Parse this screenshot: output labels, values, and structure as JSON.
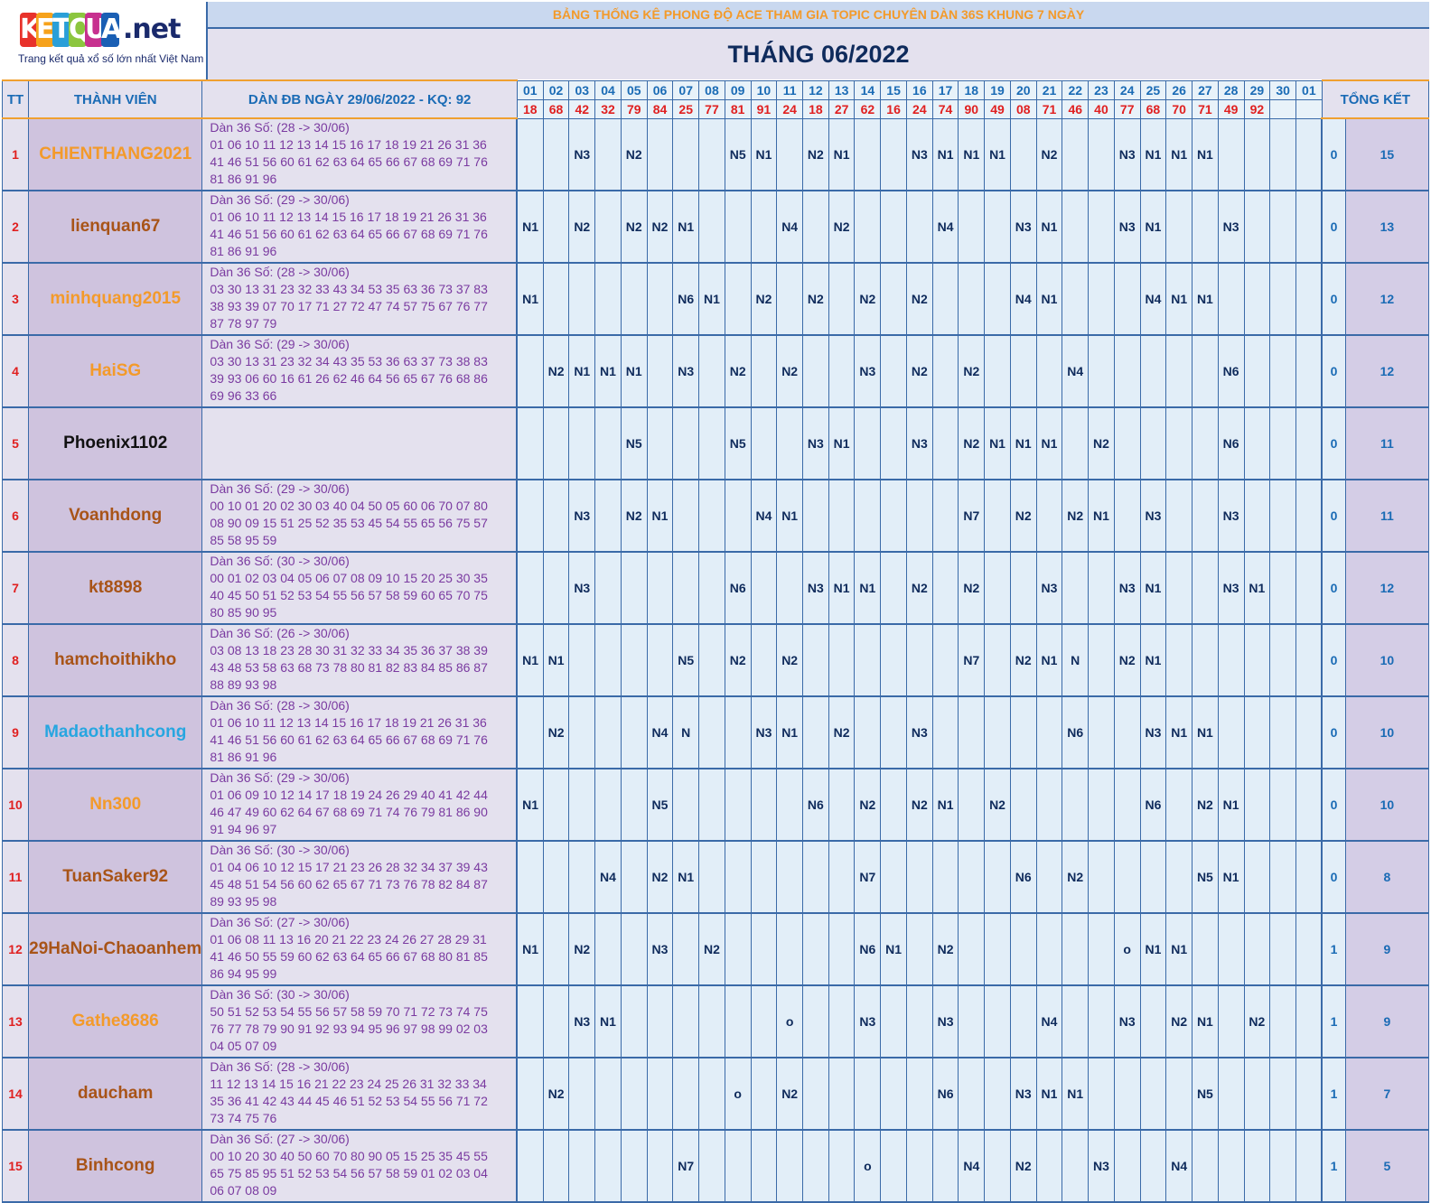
{
  "logo": {
    "brand": "KETQUA",
    "suffix": ".net",
    "tagline": "Trang kết quả xổ số lớn nhất Việt Nam",
    "letter_colors": [
      "#e8322b",
      "#f6a21b",
      "#2a9fd8",
      "#8cc63f",
      "#c7318f",
      "#1a5fb4"
    ]
  },
  "header": {
    "subtitle": "BẢNG THỐNG KÊ PHONG ĐỘ ACE THAM GIA TOPIC CHUYÊN DÀN 36S KHUNG 7 NGÀY",
    "title": "THÁNG 06/2022"
  },
  "columns": {
    "tt": "TT",
    "member": "THÀNH VIÊN",
    "dan": "DÀN ĐB NGÀY 29/06/2022 - KQ: 92",
    "total": "TỔNG KẾT"
  },
  "days": [
    "01",
    "02",
    "03",
    "04",
    "05",
    "06",
    "07",
    "08",
    "09",
    "10",
    "11",
    "12",
    "13",
    "14",
    "15",
    "16",
    "17",
    "18",
    "19",
    "20",
    "21",
    "22",
    "23",
    "24",
    "25",
    "26",
    "27",
    "28",
    "29",
    "30",
    "01"
  ],
  "results": [
    "18",
    "68",
    "42",
    "32",
    "79",
    "84",
    "25",
    "77",
    "81",
    "91",
    "24",
    "18",
    "27",
    "62",
    "16",
    "24",
    "74",
    "90",
    "49",
    "08",
    "71",
    "46",
    "40",
    "77",
    "68",
    "70",
    "71",
    "49",
    "92",
    "",
    ""
  ],
  "name_colors": {
    "orange": "#f39a2a",
    "brown": "#a85418",
    "black": "#111111",
    "cyan": "#27a6e0"
  },
  "rows": [
    {
      "tt": "1",
      "name": "CHIENTHANG2021",
      "color": "orange",
      "dan": [
        "Dàn 36 Số: (28 -> 30/06)",
        "01 06 10 11 12 13 14 15 16 17 18 19 21 26 31 36",
        "41 46 51 56 60 61 62 63 64 65 66 67 68 69 71 76",
        "81 86 91 96"
      ],
      "cells": [
        "",
        "",
        "N3",
        "",
        "N2",
        "",
        "",
        "",
        "N5",
        "N1",
        "",
        "N2",
        "N1",
        "",
        "",
        "N3",
        "N1",
        "N1",
        "N1",
        "",
        "N2",
        "",
        "",
        "N3",
        "N1",
        "N1",
        "N1",
        "",
        "",
        "",
        ""
      ],
      "t1": "0",
      "t2": "15"
    },
    {
      "tt": "2",
      "name": "lienquan67",
      "color": "brown",
      "dan": [
        "Dàn 36 Số: (29 -> 30/06)",
        "01 06 10 11 12 13 14 15 16 17 18 19 21 26 31 36",
        "41 46 51 56 60 61 62 63 64 65 66 67 68 69 71 76",
        "81 86 91 96"
      ],
      "cells": [
        "N1",
        "",
        "N2",
        "",
        "N2",
        "N2",
        "N1",
        "",
        "",
        "",
        "N4",
        "",
        "N2",
        "",
        "",
        "",
        "N4",
        "",
        "",
        "N3",
        "N1",
        "",
        "",
        "N3",
        "N1",
        "",
        "",
        "N3",
        "",
        "",
        ""
      ],
      "t1": "0",
      "t2": "13"
    },
    {
      "tt": "3",
      "name": "minhquang2015",
      "color": "orange",
      "dan": [
        "Dàn 36 Số: (28 -> 30/06)",
        "03 30 13 31 23 32 33 43 34 53 35 63 36 73 37 83",
        "38 93 39 07 70 17 71 27 72 47 74 57 75 67 76 77",
        "87 78 97 79"
      ],
      "cells": [
        "N1",
        "",
        "",
        "",
        "",
        "",
        "N6",
        "N1",
        "",
        "N2",
        "",
        "N2",
        "",
        "N2",
        "",
        "N2",
        "",
        "",
        "",
        "N4",
        "N1",
        "",
        "",
        "",
        "N4",
        "N1",
        "N1",
        "",
        "",
        "",
        ""
      ],
      "t1": "0",
      "t2": "12"
    },
    {
      "tt": "4",
      "name": "HaiSG",
      "color": "orange",
      "dan": [
        "Dàn 36 Số: (29 -> 30/06)",
        "03 30 13 31 23 32 34 43 35 53 36 63 37 73 38 83",
        "39 93 06 60 16 61 26 62 46 64 56 65 67 76 68 86",
        "69 96 33 66"
      ],
      "cells": [
        "",
        "N2",
        "N1",
        "N1",
        "N1",
        "",
        "N3",
        "",
        "N2",
        "",
        "N2",
        "",
        "",
        "N3",
        "",
        "N2",
        "",
        "N2",
        "",
        "",
        "",
        "N4",
        "",
        "",
        "",
        "",
        "",
        "N6",
        "",
        "",
        ""
      ],
      "t1": "0",
      "t2": "12"
    },
    {
      "tt": "5",
      "name": "Phoenix1102",
      "color": "black",
      "dan": [],
      "cells": [
        "",
        "",
        "",
        "",
        "N5",
        "",
        "",
        "",
        "N5",
        "",
        "",
        "N3",
        "N1",
        "",
        "",
        "N3",
        "",
        "N2",
        "N1",
        "N1",
        "N1",
        "",
        "N2",
        "",
        "",
        "",
        "",
        "N6",
        "",
        "",
        ""
      ],
      "t1": "0",
      "t2": "11"
    },
    {
      "tt": "6",
      "name": "Voanhdong",
      "color": "brown",
      "dan": [
        "Dàn 36 Số: (29 -> 30/06)",
        "00 10 01 20 02 30 03 40 04 50 05 60 06 70 07 80",
        "08 90 09 15 51 25 52 35 53 45 54 55 65 56 75 57",
        "85 58 95 59"
      ],
      "cells": [
        "",
        "",
        "N3",
        "",
        "N2",
        "N1",
        "",
        "",
        "",
        "N4",
        "N1",
        "",
        "",
        "",
        "",
        "",
        "",
        "N7",
        "",
        "N2",
        "",
        "N2",
        "N1",
        "",
        "N3",
        "",
        "",
        "N3",
        "",
        "",
        ""
      ],
      "t1": "0",
      "t2": "11"
    },
    {
      "tt": "7",
      "name": "kt8898",
      "color": "brown",
      "dan": [
        "Dàn 36 Số: (30 -> 30/06)",
        "00 01 02 03 04 05 06 07 08 09 10 15 20 25 30 35",
        "40 45 50 51 52 53 54 55 56 57 58 59 60 65 70 75",
        "80 85 90 95"
      ],
      "cells": [
        "",
        "",
        "N3",
        "",
        "",
        "",
        "",
        "",
        "N6",
        "",
        "",
        "N3",
        "N1",
        "N1",
        "",
        "N2",
        "",
        "N2",
        "",
        "",
        "N3",
        "",
        "",
        "N3",
        "N1",
        "",
        "",
        "N3",
        "N1",
        "",
        ""
      ],
      "t1": "0",
      "t2": "12"
    },
    {
      "tt": "8",
      "name": "hamchoithikho",
      "color": "brown",
      "dan": [
        "Dàn 36 Số: (26 -> 30/06)",
        "03 08 13 18 23 28 30 31 32 33 34 35 36 37 38 39",
        "43 48 53 58 63 68 73 78 80 81 82 83 84 85 86 87",
        "88 89 93 98"
      ],
      "cells": [
        "N1",
        "N1",
        "",
        "",
        "",
        "",
        "N5",
        "",
        "N2",
        "",
        "N2",
        "",
        "",
        "",
        "",
        "",
        "",
        "N7",
        "",
        "N2",
        "N1",
        "N",
        "",
        "N2",
        "N1",
        "",
        "",
        "",
        "",
        "",
        ""
      ],
      "t1": "0",
      "t2": "10"
    },
    {
      "tt": "9",
      "name": "Madaothanhcong",
      "color": "cyan",
      "dan": [
        "Dàn 36 Số: (28 -> 30/06)",
        "01 06 10 11 12 13 14 15 16 17 18 19 21 26 31 36",
        "41 46 51 56 60 61 62 63 64 65 66 67 68 69 71 76",
        "81 86 91 96"
      ],
      "cells": [
        "",
        "N2",
        "",
        "",
        "",
        "N4",
        "N",
        "",
        "",
        "N3",
        "N1",
        "",
        "N2",
        "",
        "",
        "N3",
        "",
        "",
        "",
        "",
        "",
        "N6",
        "",
        "",
        "N3",
        "N1",
        "N1",
        "",
        "",
        "",
        ""
      ],
      "t1": "0",
      "t2": "10"
    },
    {
      "tt": "10",
      "name": "Nn300",
      "color": "orange",
      "dan": [
        "Dàn 36 Số: (29 -> 30/06)",
        "01 06 09 10 12 14 17 18 19 24 26 29 40 41 42 44",
        "46 47 49 60 62 64 67 68 69 71 74 76 79 81 86 90",
        "91 94 96 97"
      ],
      "cells": [
        "N1",
        "",
        "",
        "",
        "",
        "N5",
        "",
        "",
        "",
        "",
        "",
        "N6",
        "",
        "N2",
        "",
        "N2",
        "N1",
        "",
        "N2",
        "",
        "",
        "",
        "",
        "",
        "N6",
        "",
        "N2",
        "N1",
        "",
        "",
        ""
      ],
      "t1": "0",
      "t2": "10"
    },
    {
      "tt": "11",
      "name": "TuanSaker92",
      "color": "brown",
      "dan": [
        "Dàn 36 Số: (30 -> 30/06)",
        "01 04 06 10 12 15 17 21 23 26 28 32 34 37 39 43",
        "45 48 51 54 56 60 62 65 67 71 73 76 78 82 84 87",
        "89 93 95 98"
      ],
      "cells": [
        "",
        "",
        "",
        "N4",
        "",
        "N2",
        "N1",
        "",
        "",
        "",
        "",
        "",
        "",
        "N7",
        "",
        "",
        "",
        "",
        "",
        "N6",
        "",
        "N2",
        "",
        "",
        "",
        "",
        "N5",
        "N1",
        "",
        "",
        ""
      ],
      "t1": "0",
      "t2": "8"
    },
    {
      "tt": "12",
      "name": "29HaNoi-Chaoanhem",
      "color": "brown",
      "dan": [
        "Dàn 36 Số: (27 -> 30/06)",
        "01 06 08 11 13 16 20 21 22 23 24 26 27 28 29 31",
        "41 46 50 55 59 60 62 63 64 65 66 67 68 80 81 85",
        "86 94 95 99"
      ],
      "cells": [
        "N1",
        "",
        "N2",
        "",
        "",
        "N3",
        "",
        "N2",
        "",
        "",
        "",
        "",
        "",
        "N6",
        "N1",
        "",
        "N2",
        "",
        "",
        "",
        "",
        "",
        "",
        "o",
        "N1",
        "N1",
        "",
        "",
        "",
        "",
        ""
      ],
      "t1": "1",
      "t2": "9"
    },
    {
      "tt": "13",
      "name": "Gathe8686",
      "color": "orange",
      "dan": [
        "Dàn 36 Số: (30 -> 30/06)",
        "50 51 52 53 54 55 56 57 58 59 70 71 72 73 74 75",
        "76 77 78 79 90 91 92 93 94 95 96 97 98 99 02 03",
        "04 05 07 09"
      ],
      "cells": [
        "",
        "",
        "N3",
        "N1",
        "",
        "",
        "",
        "",
        "",
        "",
        "o",
        "",
        "",
        "N3",
        "",
        "",
        "N3",
        "",
        "",
        "",
        "N4",
        "",
        "",
        "N3",
        "",
        "N2",
        "N1",
        "",
        "N2",
        "",
        ""
      ],
      "t1": "1",
      "t2": "9"
    },
    {
      "tt": "14",
      "name": "daucham",
      "color": "brown",
      "dan": [
        "Dàn 36 Số: (28 -> 30/06)",
        "11 12 13 14 15 16 21 22 23 24 25 26 31 32 33 34",
        "35 36 41 42 43 44 45 46 51 52 53 54 55 56 71 72",
        "73 74 75 76"
      ],
      "cells": [
        "",
        "N2",
        "",
        "",
        "",
        "",
        "",
        "",
        "o",
        "",
        "N2",
        "",
        "",
        "",
        "",
        "",
        "N6",
        "",
        "",
        "N3",
        "N1",
        "N1",
        "",
        "",
        "",
        "",
        "N5",
        "",
        "",
        "",
        ""
      ],
      "t1": "1",
      "t2": "7"
    },
    {
      "tt": "15",
      "name": "Binhcong",
      "color": "brown",
      "dan": [
        "Dàn 36 Số: (27 -> 30/06)",
        "00 10 20 30 40 50 60 70 80 90 05 15 25 35 45 55",
        "65 75 85 95 51 52 53 54 56 57 58 59 01 02 03 04",
        "06 07 08 09"
      ],
      "cells": [
        "",
        "",
        "",
        "",
        "",
        "",
        "N7",
        "",
        "",
        "",
        "",
        "",
        "",
        "o",
        "",
        "",
        "",
        "N4",
        "",
        "N2",
        "",
        "",
        "N3",
        "",
        "",
        "N4",
        "",
        "",
        "",
        "",
        ""
      ],
      "t1": "1",
      "t2": "5"
    }
  ]
}
